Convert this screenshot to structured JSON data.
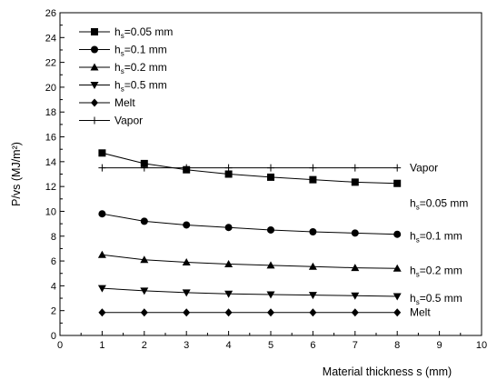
{
  "chart_data": {
    "type": "line",
    "xlabel": "Material thickness s (mm)",
    "ylabel": "P/vs (MJ/m²)",
    "xlim": [
      0,
      10
    ],
    "ylim": [
      0,
      26
    ],
    "x_ticks": [
      "0",
      "1",
      "2",
      "3",
      "4",
      "5",
      "6",
      "7",
      "8",
      "9",
      "10"
    ],
    "y_ticks": [
      "0",
      "2",
      "4",
      "6",
      "8",
      "10",
      "12",
      "14",
      "16",
      "18",
      "20",
      "22",
      "24",
      "26"
    ],
    "grid": false,
    "legend_position": "top-left",
    "x": [
      1,
      2,
      3,
      4,
      5,
      6,
      7,
      8
    ],
    "series": [
      {
        "name": "h_s=0.05 mm",
        "label_main": "h",
        "label_sub": "s",
        "label_rest": "=0.05 mm",
        "marker": "square",
        "values": [
          14.7,
          13.85,
          13.35,
          13.0,
          12.75,
          12.55,
          12.35,
          12.25
        ],
        "end_annotation": {
          "main": "h",
          "sub": "s",
          "rest": "=0.05 mm"
        }
      },
      {
        "name": "h_s=0.1 mm",
        "label_main": "h",
        "label_sub": "s",
        "label_rest": "=0.1 mm",
        "marker": "circle",
        "values": [
          9.8,
          9.2,
          8.9,
          8.7,
          8.5,
          8.35,
          8.25,
          8.15
        ],
        "end_annotation": {
          "main": "h",
          "sub": "s",
          "rest": "=0.1 mm"
        }
      },
      {
        "name": "h_s=0.2 mm",
        "label_main": "h",
        "label_sub": "s",
        "label_rest": "=0.2 mm",
        "marker": "triangle-up",
        "values": [
          6.5,
          6.1,
          5.9,
          5.75,
          5.65,
          5.55,
          5.45,
          5.4
        ],
        "end_annotation": {
          "main": "h",
          "sub": "s",
          "rest": "=0.2 mm"
        }
      },
      {
        "name": "h_s=0.5 mm",
        "label_main": "h",
        "label_sub": "s",
        "label_rest": "=0.5 mm",
        "marker": "triangle-down",
        "values": [
          3.8,
          3.6,
          3.45,
          3.35,
          3.3,
          3.25,
          3.2,
          3.15
        ],
        "end_annotation": {
          "main": "h",
          "sub": "s",
          "rest": "=0.5 mm"
        }
      },
      {
        "name": "Melt",
        "label_main": "Melt",
        "label_sub": "",
        "label_rest": "",
        "marker": "diamond",
        "values": [
          1.85,
          1.85,
          1.85,
          1.85,
          1.85,
          1.85,
          1.85,
          1.85
        ],
        "end_annotation": {
          "main": "Melt",
          "sub": "",
          "rest": ""
        }
      },
      {
        "name": "Vapor",
        "label_main": "Vapor",
        "label_sub": "",
        "label_rest": "",
        "marker": "plus",
        "values": [
          13.5,
          13.5,
          13.5,
          13.5,
          13.5,
          13.5,
          13.5,
          13.5
        ],
        "end_annotation": {
          "main": "Vapor",
          "sub": "",
          "rest": ""
        }
      }
    ]
  }
}
